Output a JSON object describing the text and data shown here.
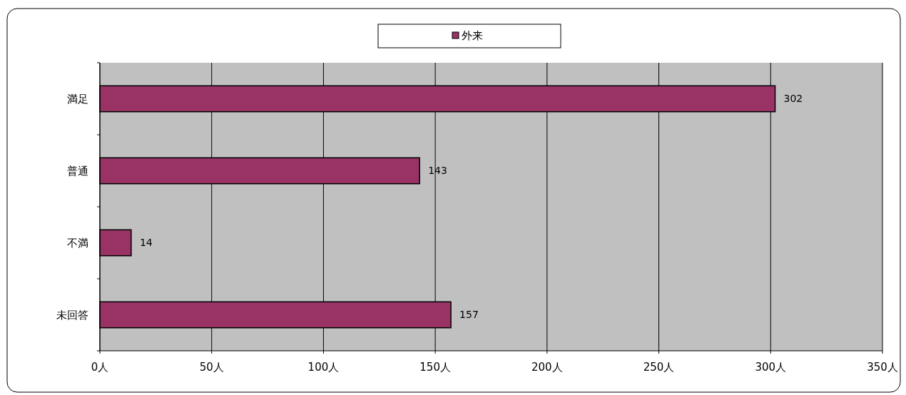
{
  "chart_data": {
    "type": "bar",
    "orientation": "horizontal",
    "categories": [
      "満足",
      "普通",
      "不満",
      "未回答"
    ],
    "series": [
      {
        "name": "外来",
        "color": "#993366",
        "values": [
          302,
          143,
          14,
          157
        ]
      }
    ],
    "xlim": [
      0,
      350
    ],
    "xticks": [
      {
        "value": 0,
        "label": "0人"
      },
      {
        "value": 50,
        "label": "50人"
      },
      {
        "value": 100,
        "label": "100人"
      },
      {
        "value": 150,
        "label": "150人"
      },
      {
        "value": 200,
        "label": "200人"
      },
      {
        "value": 250,
        "label": "250人"
      },
      {
        "value": 300,
        "label": "300人"
      },
      {
        "value": 350,
        "label": "350人"
      }
    ],
    "grid": "x",
    "legend": "top",
    "data_labels": true
  }
}
